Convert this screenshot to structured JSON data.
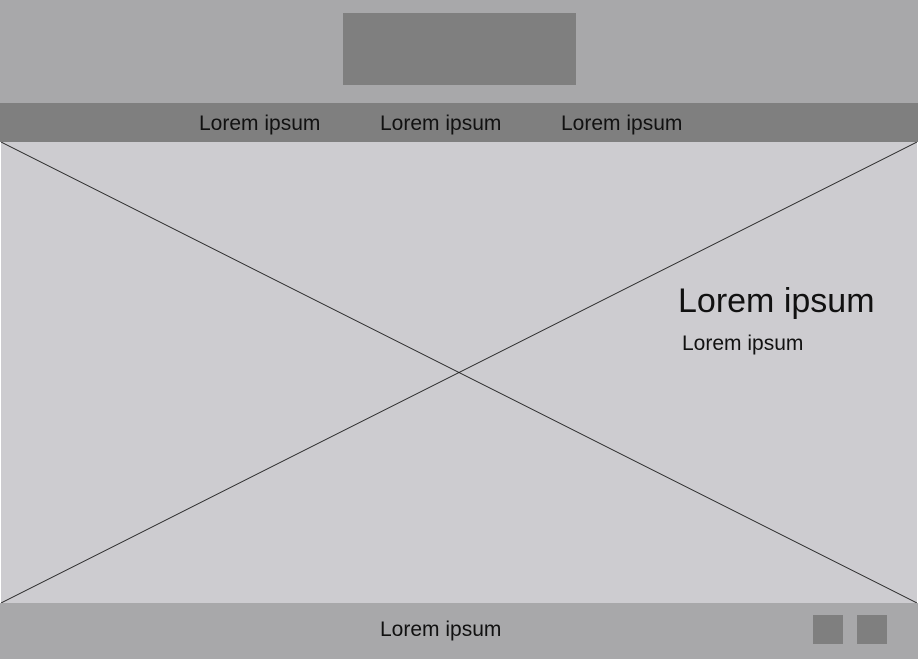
{
  "header": {
    "logo": "logo-placeholder"
  },
  "nav": {
    "items": [
      {
        "label": "Lorem ipsum"
      },
      {
        "label": "Lorem ipsum"
      },
      {
        "label": "Lorem ipsum"
      }
    ]
  },
  "hero": {
    "image": "image-placeholder",
    "heading": "Lorem ipsum",
    "subheading": "Lorem ipsum"
  },
  "footer": {
    "text": "Lorem ipsum",
    "icons": [
      "social-icon-placeholder",
      "social-icon-placeholder"
    ]
  },
  "colors": {
    "header_bg": "#a8a8aa",
    "nav_bg": "#7f7f7f",
    "hero_bg": "#cdccd0",
    "placeholder": "#7f7f7f",
    "text": "#111111"
  }
}
